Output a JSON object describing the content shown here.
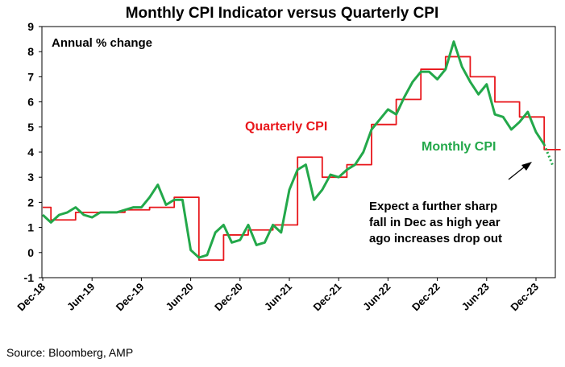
{
  "chart_data": {
    "type": "line",
    "title": "Monthly CPI Indicator versus Quarterly CPI",
    "unit_label": "Annual % change",
    "ylim": [
      -1,
      9
    ],
    "yticks": [
      -1,
      0,
      1,
      2,
      3,
      4,
      5,
      6,
      7,
      8,
      9
    ],
    "x_start": "Dec-18",
    "x_end": "Dec-23",
    "x_ticks": [
      "Dec-18",
      "Jun-19",
      "Dec-19",
      "Jun-20",
      "Dec-20",
      "Jun-21",
      "Dec-21",
      "Jun-22",
      "Dec-22",
      "Jun-23",
      "Dec-23"
    ],
    "grid": false,
    "series": [
      {
        "name": "Quarterly CPI",
        "color": "#e8161b",
        "style": "step",
        "values": [
          1.8,
          1.3,
          1.3,
          1.3,
          1.6,
          1.6,
          1.6,
          1.6,
          1.6,
          1.6,
          1.7,
          1.7,
          1.7,
          1.8,
          1.8,
          1.8,
          2.2,
          2.2,
          2.2,
          -0.3,
          -0.3,
          -0.3,
          0.7,
          0.7,
          0.7,
          0.9,
          0.9,
          0.9,
          1.1,
          1.1,
          1.1,
          3.8,
          3.8,
          3.8,
          3.0,
          3.0,
          3.0,
          3.5,
          3.5,
          3.5,
          5.1,
          5.1,
          5.1,
          6.1,
          6.1,
          6.1,
          7.3,
          7.3,
          7.3,
          7.8,
          7.8,
          7.8,
          7.0,
          7.0,
          7.0,
          6.0,
          6.0,
          6.0,
          5.4,
          5.4,
          5.4,
          4.1,
          4.1
        ]
      },
      {
        "name": "Monthly CPI",
        "color": "#23a84a",
        "style": "line",
        "values": [
          1.5,
          1.2,
          1.5,
          1.6,
          1.8,
          1.5,
          1.4,
          1.6,
          1.6,
          1.6,
          1.7,
          1.8,
          1.8,
          2.2,
          2.7,
          1.9,
          2.1,
          2.1,
          0.1,
          -0.2,
          -0.1,
          0.8,
          1.1,
          0.4,
          0.5,
          1.1,
          0.3,
          0.4,
          1.1,
          0.8,
          2.5,
          3.3,
          3.5,
          2.1,
          2.5,
          3.1,
          3.0,
          3.3,
          3.5,
          4.0,
          4.9,
          5.3,
          5.7,
          5.5,
          6.2,
          6.8,
          7.2,
          7.2,
          6.9,
          7.3,
          8.4,
          7.4,
          6.8,
          6.3,
          6.7,
          5.5,
          5.4,
          4.9,
          5.2,
          5.6,
          4.8,
          4.3
        ],
        "projection": [
          4.3,
          3.5
        ]
      }
    ],
    "annotations": [
      "Expect a further sharp",
      "fall in Dec as high year",
      "ago increases drop out"
    ]
  },
  "source": "Source: Bloomberg, AMP"
}
